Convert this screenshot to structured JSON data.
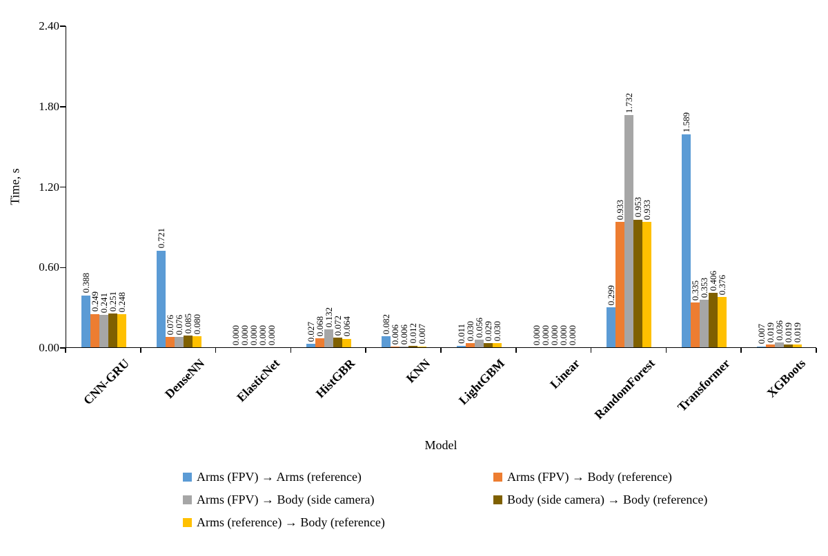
{
  "chart_data": {
    "type": "bar",
    "title": "",
    "xlabel": "Model",
    "ylabel": "Time, s",
    "ylim": [
      0,
      2.4
    ],
    "yticks": [
      0.0,
      0.6,
      1.2,
      1.8,
      2.4
    ],
    "grid": false,
    "legend_position": "bottom",
    "value_label_decimals": 3,
    "categories": [
      "CNN-GRU",
      "DenseNN",
      "ElasticNet",
      "HistGBR",
      "KNN",
      "LightGBM",
      "Linear",
      "RandomForest",
      "Transformer",
      "XGBoots"
    ],
    "series": [
      {
        "name": "Arms (FPV) → Arms (reference)",
        "color": "#5B9BD5",
        "values": [
          0.388,
          0.721,
          0.0,
          0.027,
          0.082,
          0.011,
          0.0,
          0.299,
          1.589,
          0.007
        ]
      },
      {
        "name": "Arms (FPV) → Body (reference)",
        "color": "#ED7D31",
        "values": [
          0.249,
          0.076,
          0.0,
          0.068,
          0.006,
          0.03,
          0.0,
          0.933,
          0.335,
          0.019
        ]
      },
      {
        "name": "Arms (FPV) → Body (side camera)",
        "color": "#A6A6A6",
        "values": [
          0.241,
          0.076,
          0.0,
          0.132,
          0.006,
          0.056,
          0.0,
          1.732,
          0.353,
          0.036
        ]
      },
      {
        "name": "Body (side camera) → Body (reference)",
        "color": "#7F6000",
        "values": [
          0.251,
          0.085,
          0.0,
          0.072,
          0.012,
          0.029,
          0.0,
          0.953,
          0.406,
          0.019
        ]
      },
      {
        "name": "Arms (reference) → Body (reference)",
        "color": "#FFC000",
        "values": [
          0.248,
          0.08,
          0.0,
          0.064,
          0.007,
          0.03,
          0.0,
          0.933,
          0.376,
          0.019
        ]
      }
    ]
  }
}
